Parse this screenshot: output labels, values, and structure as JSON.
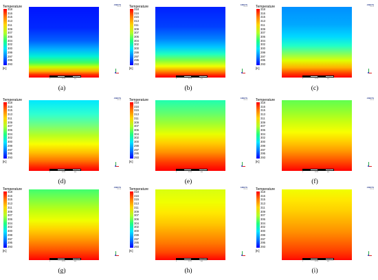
{
  "legend": {
    "title": "Temperature",
    "ticks": [
      "318",
      "316",
      "315",
      "313",
      "311",
      "309",
      "307",
      "306",
      "304",
      "302",
      "300",
      "299",
      "297",
      "295",
      "293"
    ],
    "unit": "[K]"
  },
  "logo": {
    "name": "ANSYS",
    "version": "R19.0"
  },
  "scale": {
    "left": "0",
    "mid": "0.025",
    "right": "0.050 (m)"
  },
  "panels": [
    {
      "caption": "(a)",
      "field": "linear-gradient(to bottom, #0014ff 0%, #0028ff 30%, #0060ff 48%, #00b0ff 60%, #00f0d8 70%, #40ff60 79%, #c8ff00 85%, #ffb000 91%, #ff3000 96%, #ff0000 100%)"
    },
    {
      "caption": "(b)",
      "field": "linear-gradient(to bottom, #0020ff 0%, #0040ff 28%, #0080ff 45%, #00c8ff 57%, #20ffc0 67%, #80ff40 76%, #f0ff00 84%, #ff9000 91%, #ff2000 97%, #ff0000 100%)"
    },
    {
      "caption": "(c)",
      "field": "linear-gradient(to bottom, #0090ff 0%, #00a8ff 25%, #00d8ff 42%, #20ffc8 55%, #80ff60 66%, #e0ff00 76%, #ffb000 86%, #ff4000 94%, #ff0000 100%)"
    },
    {
      "caption": "(d)",
      "field": "linear-gradient(to bottom, #00e8ff 0%, #30ffd0 20%, #70ff80 35%, #b8ff20 50%, #f8ff00 62%, #ffc000 74%, #ff7000 86%, #ff2000 95%, #ff0000 100%)"
    },
    {
      "caption": "(e)",
      "field": "linear-gradient(to bottom, #20ffb0 0%, #60ff70 18%, #a0ff30 33%, #e8ff00 48%, #ffd000 60%, #ff9000 74%, #ff4000 87%, #ff1000 96%, #ff0000 100%)"
    },
    {
      "caption": "(f)",
      "field": "linear-gradient(to bottom, #60ff50 0%, #90ff30 15%, #c8ff10 30%, #f8ff00 45%, #ffd000 58%, #ff9800 72%, #ff5000 86%, #ff1800 96%, #ff0000 100%)"
    },
    {
      "caption": "(g)",
      "field": "linear-gradient(to bottom, #40ff70 0%, #80ff40 15%, #c0ff10 30%, #f0ff00 44%, #ffd000 57%, #ff9800 71%, #ff5800 85%, #ff2000 95%, #ff0000 100%)"
    },
    {
      "caption": "(h)",
      "field": "linear-gradient(to bottom, #d8ff10 0%, #f0ff00 18%, #ffe800 33%, #ffc800 48%, #ffa000 62%, #ff7800 76%, #ff4800 89%, #ff1000 98%, #ff0000 100%)"
    },
    {
      "caption": "(i)",
      "field": "linear-gradient(to bottom, #f0ff00 0%, #ffe800 15%, #ffd000 30%, #ffb000 45%, #ff9000 60%, #ff6800 74%, #ff4000 87%, #ff1800 97%, #ff0000 100%)"
    }
  ]
}
